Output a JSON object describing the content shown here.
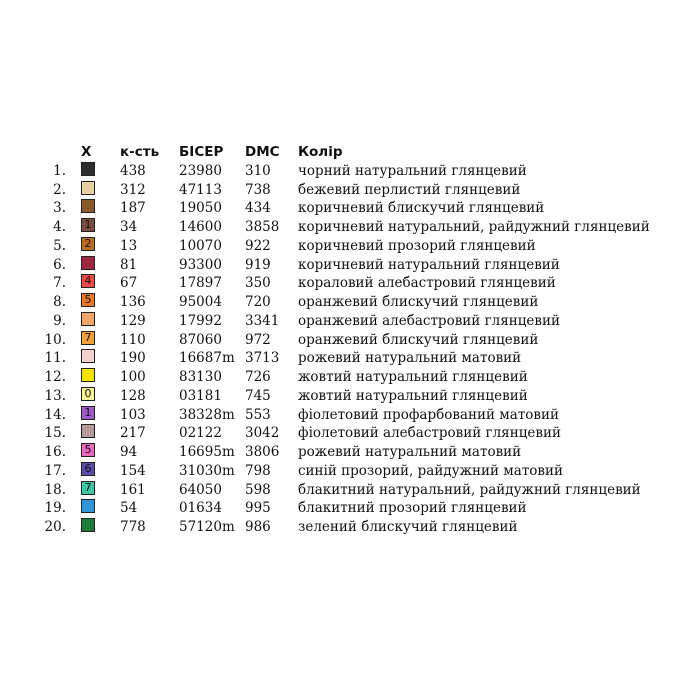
{
  "header": {
    "x": "X",
    "qty": "к-сть",
    "bead": "БІСЕР",
    "dmc": "DMC",
    "color": "Колір"
  },
  "rows": [
    {
      "num": "1.",
      "symbol": "",
      "swatch_color": "#2e2e2e",
      "qty": "438",
      "bead": "23980",
      "dmc": "310",
      "color": "чорний натуральний глянцевий"
    },
    {
      "num": "2.",
      "symbol": "",
      "swatch_color": "#e8cfa2",
      "qty": "312",
      "bead": "47113",
      "dmc": "738",
      "color": "бежевий перлистий глянцевий"
    },
    {
      "num": "3.",
      "symbol": "",
      "swatch_color": "#8b5a2b",
      "qty": "187",
      "bead": "19050",
      "dmc": "434",
      "color": "коричневий блискучий глянцевий"
    },
    {
      "num": "4.",
      "symbol": "1",
      "swatch_color": "#7a4e3a",
      "qty": "34",
      "bead": "14600",
      "dmc": "3858",
      "color": "коричневий натуральний, райдужний глянцевий"
    },
    {
      "num": "5.",
      "symbol": "2",
      "swatch_color": "#b86e1c",
      "qty": "13",
      "bead": "10070",
      "dmc": "922",
      "color": "коричневий прозорий глянцевий"
    },
    {
      "num": "6.",
      "symbol": "",
      "swatch_color": "#a0283e",
      "qty": "81",
      "bead": "93300",
      "dmc": "919",
      "color": "коричневий натуральний глянцевий"
    },
    {
      "num": "7.",
      "symbol": "4",
      "swatch_color": "#e84a4a",
      "qty": "67",
      "bead": "17897",
      "dmc": "350",
      "color": "кораловий алебастровий глянцевий"
    },
    {
      "num": "8.",
      "symbol": "5",
      "swatch_color": "#e8772a",
      "qty": "136",
      "bead": "95004",
      "dmc": "720",
      "color": "оранжевий блискучий глянцевий"
    },
    {
      "num": "9.",
      "symbol": "",
      "swatch_color": "#f3a66a",
      "qty": "129",
      "bead": "17992",
      "dmc": "3341",
      "color": "оранжевий алебастровий глянцевий"
    },
    {
      "num": "10.",
      "symbol": "7",
      "swatch_color": "#f2a03a",
      "qty": "110",
      "bead": "87060",
      "dmc": "972",
      "color": "оранжевий блискучий глянцевий"
    },
    {
      "num": "11.",
      "symbol": "",
      "swatch_color": "#f7cfcd",
      "qty": "190",
      "bead": "16687m",
      "dmc": "3713",
      "color": "рожевий натуральний матовий"
    },
    {
      "num": "12.",
      "symbol": "",
      "swatch_color": "#f5e400",
      "qty": "100",
      "bead": "83130",
      "dmc": "726",
      "color": "жовтий натуральний глянцевий"
    },
    {
      "num": "13.",
      "symbol": "0",
      "swatch_color": "#f7f29a",
      "qty": "128",
      "bead": "03181",
      "dmc": "745",
      "color": "жовтий натуральний глянцевий"
    },
    {
      "num": "14.",
      "symbol": "1",
      "swatch_color": "#a257c9",
      "qty": "103",
      "bead": "38328m",
      "dmc": "553",
      "color": "фіолетовий профарбований матовий"
    },
    {
      "num": "15.",
      "symbol": "",
      "swatch_color": "#b59a9a",
      "qty": "217",
      "bead": "02122",
      "dmc": "3042",
      "color": "фіолетовий алебастровий глянцевий"
    },
    {
      "num": "16.",
      "symbol": "5",
      "swatch_color": "#e868c2",
      "qty": "94",
      "bead": "16695m",
      "dmc": "3806",
      "color": "рожевий натуральний матовий"
    },
    {
      "num": "17.",
      "symbol": "6",
      "swatch_color": "#5a4ea8",
      "qty": "154",
      "bead": "31030m",
      "dmc": "798",
      "color": "синій прозорий, райдужний матовий"
    },
    {
      "num": "18.",
      "symbol": "7",
      "swatch_color": "#3fc6a4",
      "qty": "161",
      "bead": "64050",
      "dmc": "598",
      "color": "блакитний натуральний, райдужний глянцевий"
    },
    {
      "num": "19.",
      "symbol": "",
      "swatch_color": "#2f97d8",
      "qty": "54",
      "bead": "01634",
      "dmc": "995",
      "color": "блакитний прозорий глянцевий"
    },
    {
      "num": "20.",
      "symbol": "",
      "swatch_color": "#1f7a3a",
      "qty": "778",
      "bead": "57120m",
      "dmc": "986",
      "color": "зелений блискучий глянцевий"
    }
  ]
}
